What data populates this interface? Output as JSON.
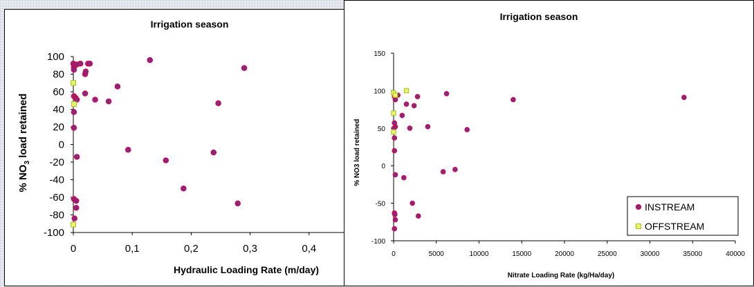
{
  "chart_data": [
    {
      "type": "scatter",
      "title": "Irrigation season",
      "xlabel": "Hydraulic Loading Rate (m/day)",
      "ylabel": "% NO3 load retained",
      "xlim": [
        0,
        0.5
      ],
      "ylim": [
        -100,
        100
      ],
      "x_ticks": [
        "0",
        "0,1",
        "0,2",
        "0,3",
        "0,4"
      ],
      "y_ticks": [
        "100",
        "80",
        "60",
        "40",
        "20",
        "0",
        "-20",
        "-40",
        "-60",
        "-80",
        "-100"
      ],
      "grid": false,
      "colors": {
        "instream_fill": "#7b2d8e",
        "instream_edge": "#e0003c",
        "offstream_fill": "#e8f56a",
        "offstream_edge": "#a8c020"
      },
      "series": [
        {
          "name": "INSTREAM",
          "points": [
            [
              0,
              92
            ],
            [
              0.001,
              88
            ],
            [
              0.001,
              85
            ],
            [
              0.006,
              91
            ],
            [
              0.012,
              92
            ],
            [
              0.02,
              80
            ],
            [
              0.021,
              83
            ],
            [
              0.025,
              92
            ],
            [
              0.028,
              92
            ],
            [
              0.13,
              96
            ],
            [
              0.29,
              87
            ],
            [
              0.075,
              66
            ],
            [
              0.02,
              58
            ],
            [
              0.001,
              55
            ],
            [
              0.004,
              53
            ],
            [
              0.006,
              51
            ],
            [
              0.037,
              51
            ],
            [
              0.06,
              49
            ],
            [
              0.246,
              47
            ],
            [
              0.001,
              37
            ],
            [
              0.001,
              19
            ],
            [
              0.093,
              -6
            ],
            [
              0.238,
              -9
            ],
            [
              0.006,
              -14
            ],
            [
              0.157,
              -18
            ],
            [
              0.187,
              -50
            ],
            [
              0.001,
              -62
            ],
            [
              0.005,
              -64
            ],
            [
              0.279,
              -67
            ],
            [
              0.005,
              -72
            ],
            [
              0.002,
              -84
            ]
          ]
        },
        {
          "name": "OFFSTREAM",
          "points": [
            [
              0,
              70
            ],
            [
              0.001,
              46
            ],
            [
              0,
              -91
            ]
          ]
        }
      ]
    },
    {
      "type": "scatter",
      "title": "Irrigation season",
      "xlabel": "Nitrate Loading Rate (kg/Ha/day)",
      "ylabel": "% NO3 load retained",
      "xlim": [
        0,
        40000
      ],
      "ylim": [
        -100,
        150
      ],
      "x_ticks": [
        "0",
        "5000",
        "10000",
        "15000",
        "20000",
        "25000",
        "30000",
        "35000",
        "40000"
      ],
      "y_ticks": [
        "150",
        "100",
        "50",
        "0",
        "-50",
        "-100"
      ],
      "grid": false,
      "legend": {
        "placement": "bottom-right",
        "items": [
          "INSTREAM",
          "OFFSTREAM"
        ]
      },
      "series": [
        {
          "name": "INSTREAM",
          "points": [
            [
              100,
              92
            ],
            [
              200,
              88
            ],
            [
              500,
              94
            ],
            [
              1000,
              67
            ],
            [
              1500,
              82
            ],
            [
              1900,
              50
            ],
            [
              2400,
              80
            ],
            [
              2800,
              92
            ],
            [
              4000,
              52
            ],
            [
              6200,
              96
            ],
            [
              8600,
              48
            ],
            [
              14000,
              88
            ],
            [
              34000,
              91
            ],
            [
              100,
              57
            ],
            [
              200,
              52
            ],
            [
              50,
              50
            ],
            [
              100,
              37
            ],
            [
              100,
              20
            ],
            [
              200,
              -12
            ],
            [
              1200,
              -16
            ],
            [
              5800,
              -8
            ],
            [
              7200,
              -5
            ],
            [
              2200,
              -50
            ],
            [
              2900,
              -67
            ],
            [
              100,
              -63
            ],
            [
              150,
              -65
            ],
            [
              200,
              -72
            ],
            [
              100,
              -84
            ]
          ]
        },
        {
          "name": "OFFSTREAM",
          "points": [
            [
              0,
              97
            ],
            [
              200,
              94
            ],
            [
              0,
              70
            ],
            [
              0,
              45
            ],
            [
              1500,
              100
            ]
          ]
        }
      ]
    }
  ]
}
